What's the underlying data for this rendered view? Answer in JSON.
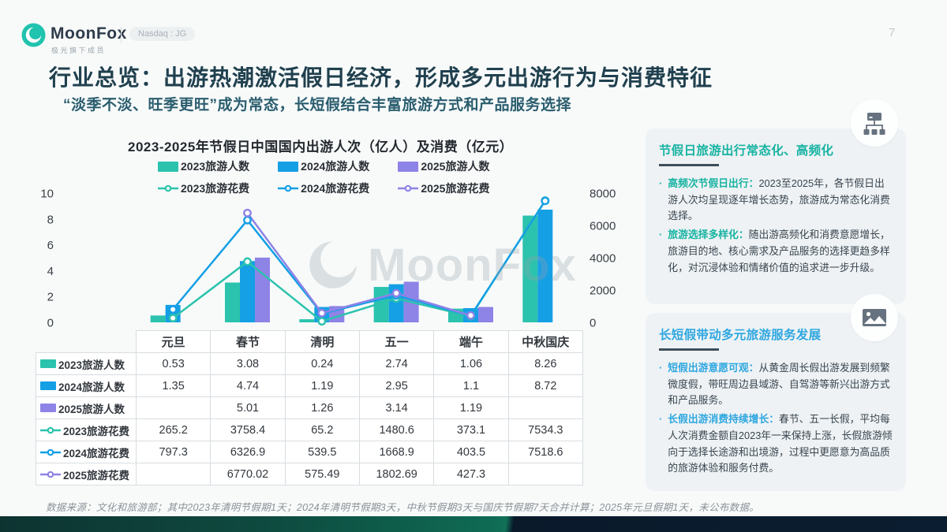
{
  "header": {
    "logo_text": "MoonFox",
    "logo_tagline": "极光旗下成员",
    "badge": "Nasdaq : JG",
    "page_number": "7"
  },
  "title": "行业总览：出游热潮激活假日经济，形成多元出游行为与消费特征",
  "subtitle": "“淡季不淡、旺季更旺”成为常态，长短假结合丰富旅游方式和产品服务选择",
  "colors": {
    "brand_teal": "#20C3AE",
    "bar_2023": "#2BC3AD",
    "bar_2024": "#159FE5",
    "bar_2025": "#8E83E6",
    "accent_card1": "#17B3A2",
    "accent_card2": "#2EA7E0"
  },
  "chart_data": {
    "type": "bar+line",
    "title": "2023-2025年节假日中国国内出游人次（亿人）及消费（亿元）",
    "categories": [
      "元旦",
      "春节",
      "清明",
      "五一",
      "端午",
      "中秋国庆"
    ],
    "bar_series": [
      {
        "name": "2023旅游人数",
        "color": "#2BC3AD",
        "values": [
          0.53,
          3.08,
          0.24,
          2.74,
          1.06,
          8.26
        ]
      },
      {
        "name": "2024旅游人数",
        "color": "#159FE5",
        "values": [
          1.35,
          4.74,
          1.19,
          2.95,
          1.1,
          8.72
        ]
      },
      {
        "name": "2025旅游人数",
        "color": "#8E83E6",
        "values": [
          null,
          5.01,
          1.26,
          3.14,
          1.19,
          null
        ]
      }
    ],
    "line_series": [
      {
        "name": "2023旅游花费",
        "color": "#2BC3AD",
        "values": [
          265.2,
          3758.4,
          65.2,
          1480.6,
          373.1,
          7534.3
        ]
      },
      {
        "name": "2024旅游花费",
        "color": "#159FE5",
        "values": [
          797.3,
          6326.9,
          539.5,
          1668.9,
          403.5,
          7518.6
        ]
      },
      {
        "name": "2025旅游花费",
        "color": "#8E83E6",
        "values": [
          null,
          6770.02,
          575.49,
          1802.69,
          427.3,
          null
        ]
      }
    ],
    "left_axis": {
      "min": 0,
      "max": 10,
      "ticks": [
        10,
        8,
        6,
        4,
        2,
        0
      ]
    },
    "right_axis": {
      "min": 0,
      "max": 8000,
      "ticks": [
        8000,
        6000,
        4000,
        2000,
        0
      ]
    },
    "grid": false,
    "legend_position": "top",
    "watermark": "MoonFox"
  },
  "table": {
    "col_headers": [
      "",
      "元旦",
      "春节",
      "清明",
      "五一",
      "端午",
      "中秋国庆"
    ],
    "rows": [
      {
        "label": "2023旅游人数",
        "marker": "swatch",
        "color": "#2BC3AD",
        "values": [
          "0.53",
          "3.08",
          "0.24",
          "2.74",
          "1.06",
          "8.26"
        ]
      },
      {
        "label": "2024旅游人数",
        "marker": "swatch",
        "color": "#159FE5",
        "values": [
          "1.35",
          "4.74",
          "1.19",
          "2.95",
          "1.1",
          "8.72"
        ]
      },
      {
        "label": "2025旅游人数",
        "marker": "swatch",
        "color": "#8E83E6",
        "values": [
          "",
          "5.01",
          "1.26",
          "3.14",
          "1.19",
          ""
        ]
      },
      {
        "label": "2023旅游花费",
        "marker": "line",
        "color": "#2BC3AD",
        "values": [
          "265.2",
          "3758.4",
          "65.2",
          "1480.6",
          "373.1",
          "7534.3"
        ]
      },
      {
        "label": "2024旅游花费",
        "marker": "line",
        "color": "#159FE5",
        "values": [
          "797.3",
          "6326.9",
          "539.5",
          "1668.9",
          "403.5",
          "7518.6"
        ]
      },
      {
        "label": "2025旅游花费",
        "marker": "line",
        "color": "#8E83E6",
        "values": [
          "",
          "6770.02",
          "575.49",
          "1802.69",
          "427.3",
          ""
        ]
      }
    ]
  },
  "sidebar": {
    "cards": [
      {
        "icon": "sitemap-icon",
        "accent": "#17B3A2",
        "title": "节假日旅游出行常态化、高频化",
        "bullets": [
          {
            "lead": "高频次节假日出行：",
            "text": "2023至2025年，各节假日出游人次均呈现逐年增长态势，旅游成为常态化消费选择。"
          },
          {
            "lead": "旅游选择多样化：",
            "text": "随出游高频化和消费意愿增长，旅游目的地、核心需求及产品服务的选择更趋多样化，对沉浸体验和情绪价值的追求进一步升级。"
          }
        ]
      },
      {
        "icon": "image-icon",
        "accent": "#2EA7E0",
        "title": "长短假带动多元旅游服务发展",
        "bullets": [
          {
            "lead": "短假出游意愿可观：",
            "text": "从黄金周长假出游发展到频繁微度假，带旺周边县域游、自驾游等新兴出游方式和产品服务。"
          },
          {
            "lead": "长假出游消费持续增长：",
            "text": "春节、五一长假，平均每人次消费金额自2023年一来保持上涨，长假旅游倾向于选择长途游和出境游，过程中更愿意为高品质的旅游体验和服务付费。"
          }
        ]
      }
    ]
  },
  "footer": {
    "source": "数据来源：文化和旅游部；其中2023年清明节假期1天；2024年清明节假期3天，中秋节假期3天与国庆节假期7天合并计算；2025年元旦假期1天，未公布数据。"
  }
}
